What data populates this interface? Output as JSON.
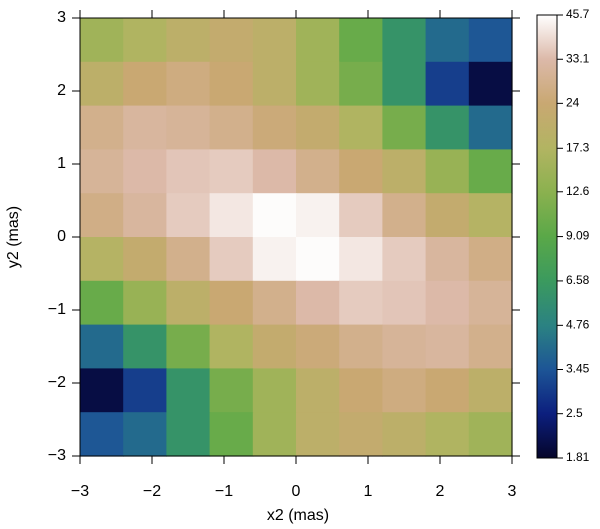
{
  "chart_data": {
    "type": "heatmap",
    "xlabel": "x2 (mas)",
    "ylabel": "y2 (mas)",
    "x": [
      -2.7,
      -2.1,
      -1.5,
      -0.9,
      -0.3,
      0.3,
      0.9,
      1.5,
      2.1,
      2.7
    ],
    "y": [
      2.7,
      2.1,
      1.5,
      0.9,
      0.3,
      -0.3,
      -0.9,
      -1.5,
      -2.1,
      -2.7
    ],
    "z": [
      [
        15,
        17,
        20,
        22,
        20,
        15,
        10,
        6,
        4,
        3.5
      ],
      [
        20,
        24,
        26,
        24,
        20,
        15,
        11,
        6,
        3,
        2
      ],
      [
        28,
        31,
        30,
        28,
        25,
        22,
        17,
        11,
        6,
        4
      ],
      [
        30,
        33,
        35,
        36,
        33,
        28,
        24,
        20,
        14,
        10
      ],
      [
        27,
        31,
        36,
        41,
        45,
        43,
        36,
        28,
        22,
        18
      ],
      [
        18,
        22,
        28,
        36,
        43,
        45,
        41,
        36,
        31,
        27
      ],
      [
        10,
        14,
        20,
        24,
        28,
        33,
        36,
        35,
        33,
        30
      ],
      [
        4,
        6,
        11,
        17,
        22,
        25,
        28,
        30,
        31,
        28
      ],
      [
        2,
        3,
        6,
        11,
        15,
        20,
        24,
        26,
        24,
        20
      ],
      [
        3.5,
        4,
        6,
        10,
        15,
        20,
        22,
        20,
        17,
        15
      ]
    ],
    "xlim": [
      -3,
      3
    ],
    "ylim": [
      -3,
      3
    ],
    "xticks": [
      {
        "value": -3,
        "label": "−3"
      },
      {
        "value": -2,
        "label": "−2"
      },
      {
        "value": -1,
        "label": "−1"
      },
      0,
      1,
      2,
      3
    ],
    "yticks": [
      {
        "value": -3,
        "label": "−3"
      },
      {
        "value": -2,
        "label": "−2"
      },
      {
        "value": -1,
        "label": "−1"
      },
      0,
      1,
      2,
      3
    ],
    "clim": [
      1.81,
      45.7
    ],
    "clog": true,
    "cticks": [
      1.81,
      2.5,
      3.45,
      4.76,
      6.58,
      9.09,
      12.6,
      17.3,
      24,
      33.1,
      45.7
    ],
    "colormap": [
      "#05052a",
      "#0c1f7e",
      "#1d5596",
      "#2b8282",
      "#3b9a5e",
      "#5aa848",
      "#8bb14f",
      "#b2b462",
      "#c9a872",
      "#dcb9a9",
      "#ffffff"
    ]
  }
}
